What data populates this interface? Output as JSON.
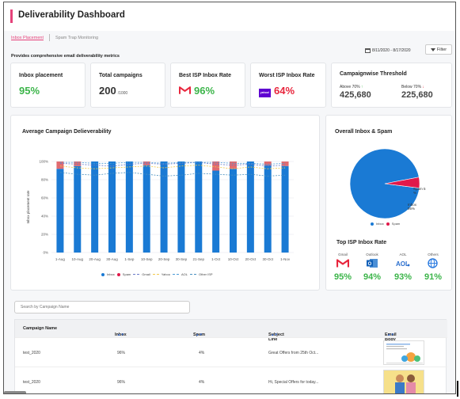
{
  "header": {
    "title": "Deliverability Dashboard",
    "tabs": [
      "Inbox Placement",
      "Spam Trap Monitoring"
    ],
    "description": "Provides comprehensive email deliverability metrics",
    "date_range": "8/11/2020 - 8/17/2020",
    "filter_label": "Filter"
  },
  "kpis": {
    "inbox_placement": {
      "label": "Inbox placement",
      "value": "95%"
    },
    "total_campaigns": {
      "label": "Total campaigns",
      "value": "200",
      "sub": "/1000"
    },
    "best_isp": {
      "label": "Best ISP Inbox Rate",
      "value": "96%"
    },
    "worst_isp": {
      "label": "Worst ISP Inbox Rate",
      "value": "64%",
      "logo_text": "yahoo!"
    },
    "threshold": {
      "title": "Campaignwise Threshold",
      "above_label": "Above 70%",
      "above_value": "425,680",
      "below_label": "Below 70%",
      "below_value": "225,680"
    }
  },
  "avg_chart": {
    "title": "Average Campaign  Delieverability",
    "legend": [
      "Inbox",
      "Spam",
      "Gmail",
      "Yahoo",
      "AOL",
      "Other ISP"
    ]
  },
  "chart_data": [
    {
      "type": "bar",
      "title": "Average Campaign  Delieverability",
      "xlabel": "",
      "ylabel": "Inbox placement rate",
      "ylim": [
        0,
        100
      ],
      "y_ticks": [
        "0%",
        "20%",
        "40%",
        "60%",
        "80%",
        "100%"
      ],
      "categories": [
        "1-Aug",
        "10-Aug",
        "20-Aug",
        "30-Aug",
        "1-Sep",
        "10-Sep",
        "20-Sep",
        "30-Sep",
        "21-Sep",
        "1-Oct",
        "10-Oct",
        "20-Oct",
        "30-Oct",
        "1-Nov"
      ],
      "series": [
        {
          "name": "Inbox",
          "values": [
            92,
            95,
            100,
            100,
            100,
            96,
            100,
            100,
            100,
            90,
            92,
            100,
            96,
            95
          ],
          "color": "#1a7ad4"
        },
        {
          "name": "Spam",
          "values": [
            8,
            5,
            0,
            0,
            0,
            4,
            0,
            0,
            0,
            10,
            8,
            0,
            4,
            5
          ],
          "color": "#e06b70"
        },
        {
          "name": "Gmail",
          "values": [
            98,
            97,
            96,
            95,
            97,
            98,
            97,
            98,
            99,
            97,
            96,
            97,
            95,
            96
          ],
          "color": "#6a7bc8",
          "style": "dashed"
        },
        {
          "name": "Yahoo",
          "values": [
            95,
            93,
            92,
            93,
            94,
            95,
            93,
            95,
            96,
            94,
            92,
            94,
            92,
            93
          ],
          "color": "#f2c94c",
          "style": "dashed"
        },
        {
          "name": "AOL",
          "values": [
            99,
            99,
            98,
            98,
            99,
            99,
            98,
            99,
            99,
            99,
            98,
            98,
            97,
            98
          ],
          "color": "#4a9ad8",
          "style": "dashed"
        },
        {
          "name": "Other ISP",
          "values": [
            88,
            86,
            85,
            87,
            88,
            86,
            84,
            85,
            87,
            86,
            85,
            86,
            84,
            85
          ],
          "color": "#4a90c0",
          "style": "dashed"
        }
      ]
    },
    {
      "type": "pie",
      "title": "Overall Inbox & Spam",
      "categories": [
        "Inbox",
        "Spam"
      ],
      "values": [
        95,
        5
      ],
      "labels": [
        "Inbox 95%",
        "Spam 5 %"
      ],
      "colors": [
        "#1a7ad4",
        "#e0194a"
      ]
    }
  ],
  "pie": {
    "title": "Overall Inbox & Spam",
    "legend": [
      "Inbox",
      "Spam"
    ],
    "spam_label": "Spam 5 %",
    "inbox_label": "Inbox 95%"
  },
  "top_isp": {
    "title": "Top ISP Inbox Rate",
    "items": [
      {
        "name": "Gmail",
        "value": "95%",
        "icon": "gmail-icon"
      },
      {
        "name": "Outlook",
        "value": "94%",
        "icon": "outlook-icon"
      },
      {
        "name": "AOL",
        "value": "93%",
        "icon": "aol-icon"
      },
      {
        "name": "Others",
        "value": "91%",
        "icon": "globe-icon"
      }
    ]
  },
  "search": {
    "placeholder": "Search by Campaign Name"
  },
  "table": {
    "columns": [
      "Campaign Name",
      "Inbox",
      "Spam",
      "Subject Line",
      "Email Body"
    ],
    "rows": [
      {
        "campaign": "test_2020",
        "inbox": "96%",
        "spam": "4%",
        "subject": "Great Offers from 25th Oct..."
      },
      {
        "campaign": "test_2020",
        "inbox": "96%",
        "spam": "4%",
        "subject": "Hi, Special Offers for today..."
      }
    ]
  },
  "colors": {
    "accent": "#e5427a",
    "green": "#3cb54a",
    "red": "#e8263d",
    "inbox_blue": "#1a7ad4",
    "spam_red": "#e06b70"
  }
}
